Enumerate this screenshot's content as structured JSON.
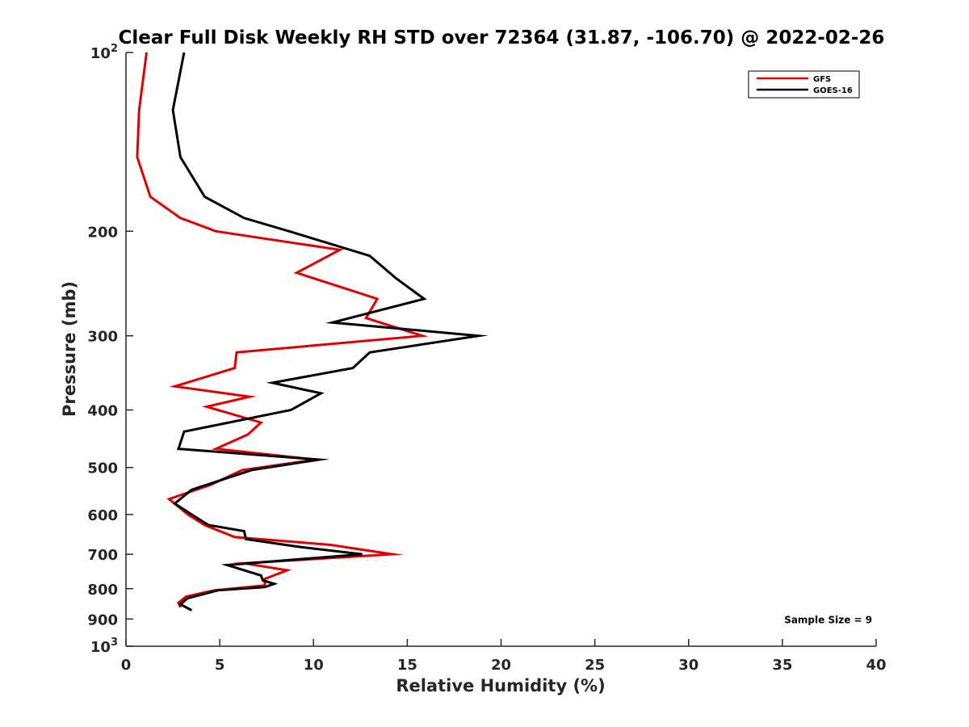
{
  "chart_data": {
    "type": "line",
    "title": "Clear Full Disk Weekly RH STD over 72364 (31.87, -106.70) @ 2022-02-26",
    "xlabel": "Relative Humidity (%)",
    "ylabel": "Pressure (mb)",
    "xlim": [
      0,
      40
    ],
    "ylim": [
      100,
      1000
    ],
    "yscale": "log",
    "y_reversed": true,
    "grid": false,
    "legend_position": "top-right",
    "x_ticks": [
      "0",
      "5",
      "10",
      "15",
      "20",
      "25",
      "30",
      "35",
      "40"
    ],
    "y_ticks": [
      {
        "value": 100,
        "label": "10",
        "sup": "2"
      },
      {
        "value": 200,
        "label": "200",
        "sup": ""
      },
      {
        "value": 300,
        "label": "300",
        "sup": ""
      },
      {
        "value": 400,
        "label": "400",
        "sup": ""
      },
      {
        "value": 500,
        "label": "500",
        "sup": ""
      },
      {
        "value": 600,
        "label": "600",
        "sup": ""
      },
      {
        "value": 700,
        "label": "700",
        "sup": ""
      },
      {
        "value": 800,
        "label": "800",
        "sup": ""
      },
      {
        "value": 900,
        "label": "900",
        "sup": ""
      },
      {
        "value": 1000,
        "label": "10",
        "sup": "3"
      }
    ],
    "series": [
      {
        "name": "GFS",
        "color": "#e00000",
        "points": [
          [
            1.1,
            100
          ],
          [
            0.7,
            125
          ],
          [
            0.6,
            150
          ],
          [
            1.3,
            175
          ],
          [
            2.9,
            190
          ],
          [
            4.8,
            200
          ],
          [
            11.4,
            215
          ],
          [
            9.1,
            235
          ],
          [
            13.4,
            260
          ],
          [
            12.8,
            280
          ],
          [
            15.8,
            300
          ],
          [
            5.9,
            320
          ],
          [
            5.8,
            340
          ],
          [
            2.6,
            365
          ],
          [
            6.6,
            380
          ],
          [
            4.3,
            395
          ],
          [
            7.2,
            420
          ],
          [
            6.5,
            440
          ],
          [
            4.8,
            465
          ],
          [
            10.1,
            485
          ],
          [
            6.2,
            505
          ],
          [
            4.5,
            535
          ],
          [
            2.3,
            565
          ],
          [
            3.3,
            600
          ],
          [
            4.2,
            625
          ],
          [
            5.8,
            655
          ],
          [
            10.9,
            675
          ],
          [
            14.2,
            700
          ],
          [
            6.3,
            725
          ],
          [
            8.6,
            745
          ],
          [
            7.4,
            770
          ],
          [
            7.4,
            790
          ],
          [
            4.7,
            805
          ],
          [
            3.2,
            825
          ],
          [
            2.8,
            845
          ],
          [
            2.9,
            860
          ]
        ]
      },
      {
        "name": "GOES-16",
        "color": "#000000",
        "points": [
          [
            3.1,
            100
          ],
          [
            2.5,
            125
          ],
          [
            2.9,
            150
          ],
          [
            4.2,
            175
          ],
          [
            6.3,
            190
          ],
          [
            8.7,
            200
          ],
          [
            13.0,
            220
          ],
          [
            14.4,
            240
          ],
          [
            15.9,
            260
          ],
          [
            11.0,
            285
          ],
          [
            18.8,
            300
          ],
          [
            13.0,
            320
          ],
          [
            12.1,
            340
          ],
          [
            7.8,
            360
          ],
          [
            10.4,
            375
          ],
          [
            8.8,
            400
          ],
          [
            3.1,
            435
          ],
          [
            2.8,
            465
          ],
          [
            10.3,
            485
          ],
          [
            6.7,
            505
          ],
          [
            3.5,
            545
          ],
          [
            2.6,
            575
          ],
          [
            3.5,
            600
          ],
          [
            4.4,
            625
          ],
          [
            6.3,
            640
          ],
          [
            6.4,
            660
          ],
          [
            9.2,
            680
          ],
          [
            12.6,
            700
          ],
          [
            5.4,
            730
          ],
          [
            7.2,
            760
          ],
          [
            7.3,
            775
          ],
          [
            7.9,
            785
          ],
          [
            7.4,
            795
          ],
          [
            4.9,
            805
          ],
          [
            3.3,
            830
          ],
          [
            2.9,
            850
          ],
          [
            3.5,
            870
          ]
        ]
      }
    ],
    "annotations": [
      {
        "text": "Sample Size = 9",
        "x": 35.1,
        "y": 900
      }
    ]
  }
}
